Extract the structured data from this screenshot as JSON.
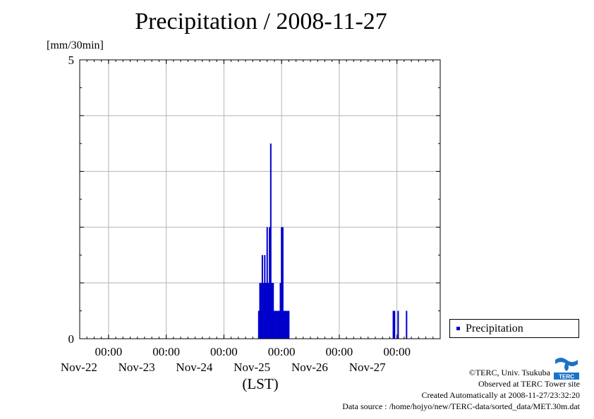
{
  "title": "Precipitation / 2008-11-27",
  "unit_label": "[mm/30min]",
  "x_axis_label": "(LST)",
  "legend": {
    "label": "Precipitation"
  },
  "credits": {
    "copyright": "©TERC, Univ. Tsukuba",
    "observed": "Observed at TERC Tower site",
    "created": "Created Automatically at 2008-11-27/23:32:20",
    "source": "Data source : /home/hojyo/new/TERC-data/sorted_data/MET.30m.dat"
  },
  "logo": {
    "text": "TERC",
    "icon": "terc-logo"
  },
  "colors": {
    "bar": "#0000cc",
    "grid": "#b4b4b4",
    "axis": "#000000"
  },
  "chart_data": {
    "type": "bar",
    "title": "Precipitation / 2008-11-27",
    "ylabel": "[mm/30min]",
    "xlabel": "(LST)",
    "ylim": [
      0,
      5
    ],
    "yticks": [
      0,
      5
    ],
    "ygrid": [
      1,
      2,
      3,
      4
    ],
    "xlim": [
      "2008-11-21 12:00",
      "2008-11-27 18:00"
    ],
    "xticks": [
      {
        "time": "2008-11-22 00:00",
        "label": "00:00",
        "date": "Nov-22"
      },
      {
        "time": "2008-11-23 00:00",
        "label": "00:00",
        "date": "Nov-23"
      },
      {
        "time": "2008-11-24 00:00",
        "label": "00:00",
        "date": "Nov-24"
      },
      {
        "time": "2008-11-25 00:00",
        "label": "00:00",
        "date": "Nov-25"
      },
      {
        "time": "2008-11-26 00:00",
        "label": "00:00",
        "date": "Nov-26"
      },
      {
        "time": "2008-11-27 00:00",
        "label": "00:00",
        "date": "Nov-27"
      }
    ],
    "grid": true,
    "legend_position": "right",
    "series": [
      {
        "name": "Precipitation",
        "x": [
          "2008-11-24 14:30",
          "2008-11-24 15:00",
          "2008-11-24 15:30",
          "2008-11-24 16:00",
          "2008-11-24 16:30",
          "2008-11-24 17:00",
          "2008-11-24 17:30",
          "2008-11-24 18:00",
          "2008-11-24 18:30",
          "2008-11-24 19:00",
          "2008-11-24 19:30",
          "2008-11-24 20:00",
          "2008-11-24 20:30",
          "2008-11-24 21:00",
          "2008-11-24 21:30",
          "2008-11-24 22:00",
          "2008-11-24 22:30",
          "2008-11-24 23:00",
          "2008-11-24 23:30",
          "2008-11-25 00:00",
          "2008-11-25 00:30",
          "2008-11-25 01:00",
          "2008-11-25 01:30",
          "2008-11-25 02:00",
          "2008-11-25 02:30",
          "2008-11-25 03:00",
          "2008-11-26 22:30",
          "2008-11-26 23:00",
          "2008-11-27 00:30",
          "2008-11-27 04:00"
        ],
        "values": [
          0.5,
          1.0,
          1.0,
          1.5,
          1.0,
          1.5,
          1.0,
          2.0,
          1.0,
          2.0,
          3.5,
          1.0,
          1.0,
          0.5,
          0.5,
          0.5,
          0.5,
          0.5,
          1.0,
          2.0,
          2.0,
          0.5,
          0.5,
          0.5,
          0.5,
          0.5,
          0.5,
          0.5,
          0.5,
          0.5
        ]
      }
    ]
  }
}
